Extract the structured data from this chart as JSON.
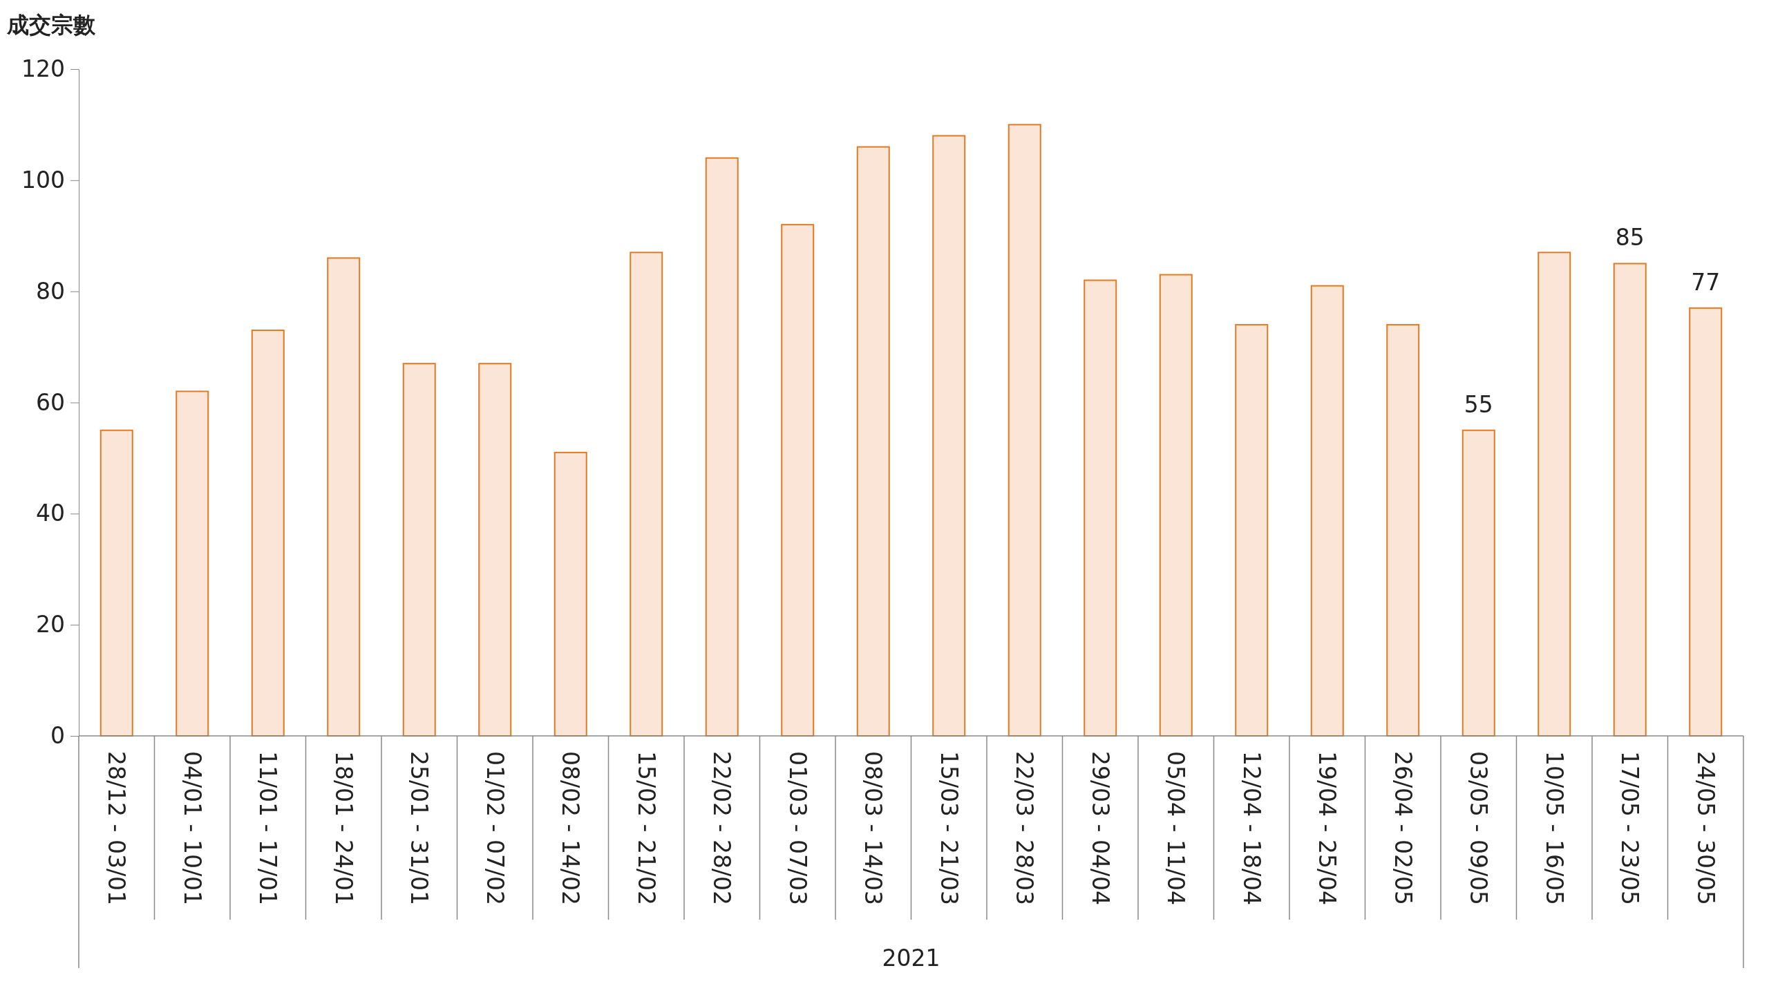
{
  "chart_data": {
    "type": "bar",
    "ylabel": "成交宗數",
    "xlabel": "2021",
    "categories": [
      "28/12 - 03/01",
      "04/01 - 10/01",
      "11/01 - 17/01",
      "18/01 - 24/01",
      "25/01 - 31/01",
      "01/02 - 07/02",
      "08/02 - 14/02",
      "15/02 - 21/02",
      "22/02 - 28/02",
      "01/03 - 07/03",
      "08/03 - 14/03",
      "15/03 - 21/03",
      "22/03 - 28/03",
      "29/03 - 04/04",
      "05/04 - 11/04",
      "12/04 - 18/04",
      "19/04 - 25/04",
      "26/04 - 02/05",
      "03/05 - 09/05",
      "10/05 - 16/05",
      "17/05 - 23/05",
      "24/05 - 30/05"
    ],
    "values": [
      55,
      62,
      73,
      86,
      67,
      67,
      51,
      87,
      104,
      92,
      106,
      108,
      110,
      82,
      83,
      74,
      81,
      74,
      55,
      87,
      85,
      77
    ],
    "value_labels": [
      null,
      null,
      null,
      null,
      null,
      null,
      null,
      null,
      null,
      null,
      null,
      null,
      null,
      null,
      null,
      null,
      null,
      null,
      "55",
      null,
      "85",
      "77"
    ],
    "color": "#fbe5d6",
    "ylim": [
      0,
      120
    ],
    "yticks": [
      0,
      20,
      40,
      60,
      80,
      100,
      120
    ],
    "grid": false
  }
}
